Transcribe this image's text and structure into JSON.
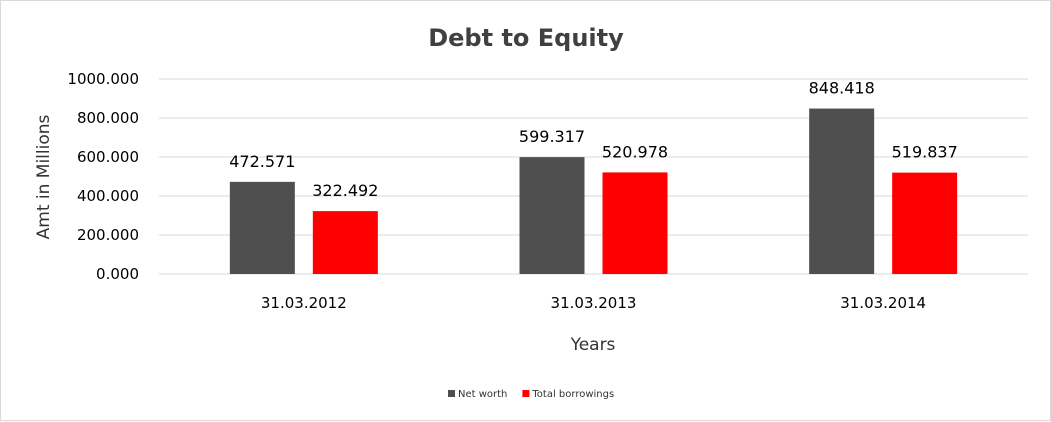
{
  "chart_data": {
    "type": "bar",
    "title": "Debt to Equity",
    "xlabel": "Years",
    "ylabel": "Amt in Millions",
    "categories": [
      "31.03.2012",
      "31.03.2013",
      "31.03.2014"
    ],
    "series": [
      {
        "name": "Net worth",
        "color": "#4f4f4f",
        "values": [
          472.571,
          599.317,
          848.418
        ],
        "labels": [
          "472.571",
          "599.317",
          "848.418"
        ]
      },
      {
        "name": "Total borrowings",
        "color": "#ff0000",
        "values": [
          322.492,
          520.978,
          519.837
        ],
        "labels": [
          "322.492",
          "520.978",
          "519.837"
        ]
      }
    ],
    "ylim": [
      0,
      1000
    ],
    "yticks": [
      0,
      200,
      400,
      600,
      800,
      1000
    ],
    "ytick_labels": [
      "0.000",
      "200.000",
      "400.000",
      "600.000",
      "800.000",
      "1000.000"
    ],
    "grid": true,
    "legend_position": "bottom"
  }
}
